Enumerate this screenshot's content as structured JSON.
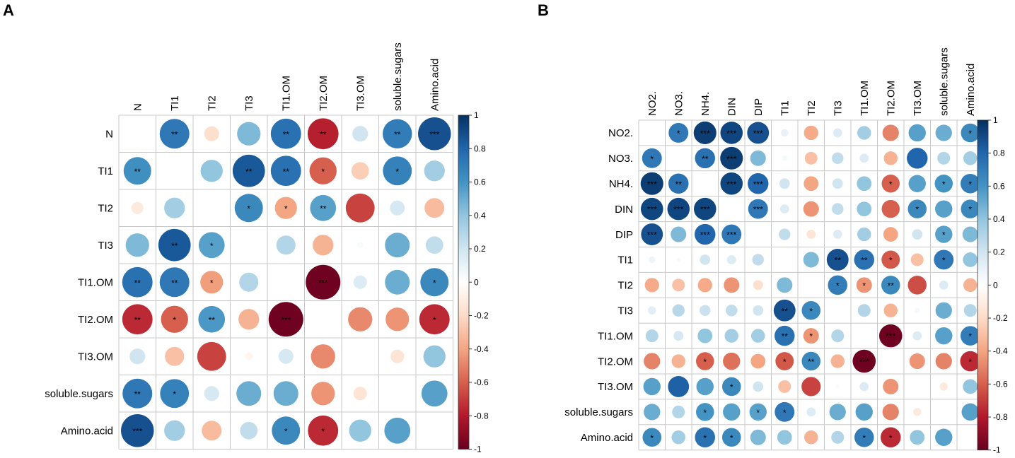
{
  "panels": [
    {
      "label": "A",
      "type": "correlogram",
      "variables": [
        "N",
        "TI1",
        "TI2",
        "TI3",
        "TI1.OM",
        "TI2.OM",
        "TI3.OM",
        "soluble.sugars",
        "Amino.acid"
      ],
      "matrix": [
        [
          null,
          0.72,
          -0.18,
          0.45,
          0.75,
          -0.78,
          0.2,
          0.7,
          0.88
        ],
        [
          0.62,
          null,
          0.4,
          0.85,
          0.75,
          -0.6,
          -0.25,
          0.68,
          0.35
        ],
        [
          -0.12,
          0.35,
          null,
          0.65,
          -0.4,
          0.55,
          -0.68,
          0.18,
          -0.32
        ],
        [
          0.45,
          0.85,
          0.55,
          null,
          0.3,
          -0.35,
          0.03,
          0.5,
          0.25
        ],
        [
          0.75,
          0.72,
          -0.42,
          0.3,
          null,
          -0.98,
          0.15,
          0.5,
          0.65
        ],
        [
          -0.75,
          -0.6,
          0.58,
          -0.35,
          -0.98,
          null,
          -0.48,
          -0.45,
          -0.75
        ],
        [
          0.2,
          -0.3,
          -0.68,
          -0.05,
          0.18,
          -0.48,
          null,
          -0.15,
          0.4
        ],
        [
          0.72,
          0.68,
          0.18,
          0.5,
          0.5,
          -0.45,
          -0.15,
          null,
          0.55
        ],
        [
          0.88,
          0.35,
          -0.32,
          0.25,
          0.65,
          -0.75,
          0.4,
          0.55,
          null
        ]
      ],
      "stars": [
        [
          "",
          "**",
          "",
          "",
          "**",
          "**",
          "",
          "**",
          "***"
        ],
        [
          "**",
          "",
          "",
          "**",
          "**",
          "*",
          "",
          "*",
          ""
        ],
        [
          "",
          "",
          "",
          "*",
          "*",
          "**",
          "",
          "",
          ""
        ],
        [
          "",
          "**",
          "*",
          "",
          "",
          "",
          "",
          "",
          ""
        ],
        [
          "**",
          "**",
          "*",
          "",
          "",
          "***",
          "",
          "",
          "*"
        ],
        [
          "**",
          "*",
          "**",
          "",
          "***",
          "",
          "",
          "",
          "*"
        ],
        [
          "",
          "",
          "",
          "",
          "",
          "",
          "",
          "",
          ""
        ],
        [
          "**",
          "*",
          "",
          "",
          "",
          "",
          "",
          "",
          ""
        ],
        [
          "***",
          "",
          "",
          "",
          "*",
          "*",
          "",
          "",
          ""
        ]
      ],
      "colorbar_ticks": [
        "1",
        "0.8",
        "0.6",
        "0.4",
        "0.2",
        "0",
        "-0.2",
        "-0.4",
        "-0.6",
        "-0.8",
        "-1"
      ]
    },
    {
      "label": "B",
      "type": "correlogram",
      "variables": [
        "NO2.",
        "NO3.",
        "NH4.",
        "DIN",
        "DIP",
        "TI1",
        "TI2",
        "TI3",
        "TI1.OM",
        "TI2.OM",
        "TI3.OM",
        "soluble.sugars",
        "Amino.acid"
      ],
      "matrix": [
        [
          null,
          0.72,
          0.95,
          0.92,
          0.88,
          0.1,
          -0.38,
          0.15,
          0.35,
          -0.5,
          0.55,
          0.5,
          0.65
        ],
        [
          0.72,
          null,
          0.75,
          0.95,
          0.45,
          0.05,
          -0.3,
          0.25,
          0.15,
          -0.35,
          0.8,
          0.3,
          0.35
        ],
        [
          0.95,
          0.75,
          null,
          0.92,
          0.8,
          0.2,
          -0.4,
          0.2,
          0.4,
          -0.6,
          0.55,
          0.6,
          0.7
        ],
        [
          0.92,
          0.92,
          0.92,
          null,
          0.72,
          0.15,
          -0.45,
          0.25,
          0.4,
          -0.6,
          0.65,
          0.55,
          0.65
        ],
        [
          0.88,
          0.45,
          0.8,
          0.72,
          null,
          0.25,
          -0.15,
          0.15,
          0.35,
          -0.4,
          0.2,
          0.55,
          0.45
        ],
        [
          0.08,
          0.03,
          0.2,
          0.15,
          0.25,
          null,
          0.45,
          0.88,
          0.75,
          -0.62,
          -0.3,
          0.72,
          0.4
        ],
        [
          -0.38,
          -0.3,
          -0.38,
          -0.45,
          -0.18,
          0.45,
          null,
          0.7,
          -0.45,
          0.65,
          -0.65,
          0.15,
          -0.35
        ],
        [
          0.12,
          0.28,
          0.22,
          0.25,
          0.2,
          0.88,
          0.65,
          null,
          0.3,
          -0.35,
          0.05,
          0.5,
          0.3
        ],
        [
          0.3,
          0.18,
          0.4,
          0.35,
          0.35,
          0.75,
          -0.45,
          0.3,
          null,
          -0.98,
          0.15,
          0.55,
          0.7
        ],
        [
          -0.5,
          -0.35,
          -0.6,
          -0.55,
          -0.4,
          -0.62,
          0.65,
          -0.35,
          -0.98,
          null,
          -0.45,
          -0.5,
          -0.75
        ],
        [
          0.55,
          0.82,
          0.55,
          0.65,
          0.2,
          -0.3,
          -0.68,
          0.03,
          0.15,
          -0.45,
          null,
          -0.12,
          0.4
        ],
        [
          0.5,
          0.3,
          0.6,
          0.55,
          0.55,
          0.72,
          0.15,
          0.5,
          0.55,
          -0.5,
          -0.12,
          null,
          0.55
        ],
        [
          0.65,
          0.35,
          0.75,
          0.65,
          0.45,
          0.4,
          -0.35,
          0.3,
          0.7,
          -0.75,
          0.4,
          0.55,
          null
        ]
      ],
      "stars": [
        [
          "",
          "*",
          "***",
          "***",
          "***",
          "",
          "",
          "",
          "",
          "",
          "",
          "",
          "*"
        ],
        [
          "*",
          "",
          "**",
          "***",
          "",
          "",
          "",
          "",
          "",
          "",
          "",
          "",
          ""
        ],
        [
          "***",
          "**",
          "",
          "***",
          "***",
          "",
          "",
          "",
          "",
          "*",
          "",
          "*",
          "*"
        ],
        [
          "***",
          "***",
          "***",
          "",
          "***",
          "",
          "",
          "",
          "",
          "",
          "*",
          "",
          "*"
        ],
        [
          "***",
          "",
          "***",
          "***",
          "",
          "",
          "",
          "",
          "",
          "",
          "",
          "*",
          ""
        ],
        [
          "",
          "",
          "",
          "",
          "",
          "",
          "",
          "**",
          "**",
          "*",
          "",
          "*",
          ""
        ],
        [
          "",
          "",
          "",
          "",
          "",
          "",
          "",
          "*",
          "*",
          "**",
          "",
          "",
          ""
        ],
        [
          "",
          "",
          "",
          "",
          "",
          "**",
          "*",
          "",
          "",
          "",
          "",
          "",
          ""
        ],
        [
          "",
          "",
          "",
          "",
          "",
          "**",
          "*",
          "",
          "",
          "***",
          "",
          "",
          "*"
        ],
        [
          "",
          "",
          "*",
          "",
          "",
          "*",
          "**",
          "",
          "***",
          "",
          "",
          "",
          "*"
        ],
        [
          "",
          "",
          "",
          "*",
          "",
          "",
          "",
          "",
          "",
          "",
          "",
          "",
          ""
        ],
        [
          "",
          "",
          "*",
          "",
          "*",
          "*",
          "",
          "",
          "",
          "",
          "",
          "",
          ""
        ],
        [
          "*",
          "",
          "*",
          "*",
          "",
          "",
          "",
          "",
          "*",
          "*",
          "",
          "",
          ""
        ]
      ],
      "colorbar_ticks": [
        "1",
        "0.8",
        "0.6",
        "0.4",
        "0.2",
        "0",
        "-0.2",
        "-0.4",
        "-0.6",
        "-0.8",
        "-1"
      ]
    }
  ]
}
